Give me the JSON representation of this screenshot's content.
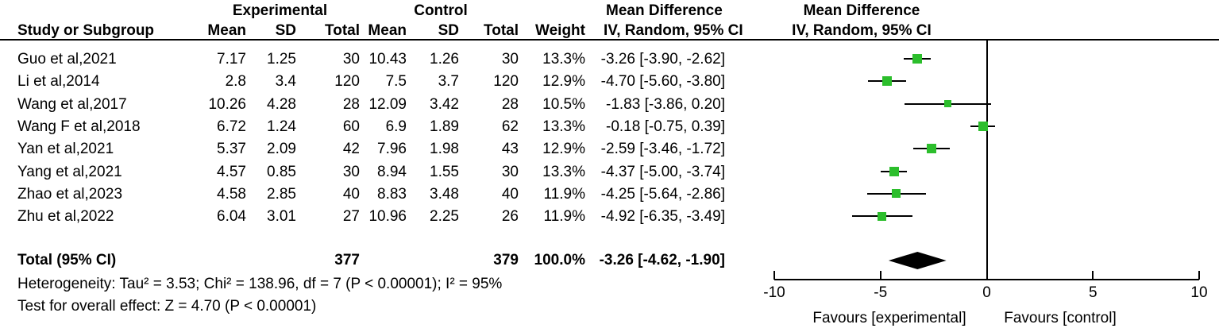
{
  "chart_data": {
    "type": "forest",
    "effect_measure": "Mean Difference",
    "method": "IV, Random, 95% CI",
    "header": {
      "study_col": "Study or Subgroup",
      "experimental_group": "Experimental",
      "control_group": "Control",
      "mean": "Mean",
      "sd": "SD",
      "total": "Total",
      "weight": "Weight",
      "md_title": "Mean Difference",
      "md_subtitle": "IV, Random, 95% CI"
    },
    "studies": [
      {
        "name": "Guo et al,2021",
        "exp_mean": "7.17",
        "exp_sd": "1.25",
        "exp_total": "30",
        "ctrl_mean": "10.43",
        "ctrl_sd": "1.26",
        "ctrl_total": "30",
        "weight": "13.3%",
        "weight_value": 13.3,
        "ci_label": "-3.26 [-3.90, -2.62]",
        "md": -3.26,
        "ci_low": -3.9,
        "ci_high": -2.62
      },
      {
        "name": "Li et al,2014",
        "exp_mean": "2.8",
        "exp_sd": "3.4",
        "exp_total": "120",
        "ctrl_mean": "7.5",
        "ctrl_sd": "3.7",
        "ctrl_total": "120",
        "weight": "12.9%",
        "weight_value": 12.9,
        "ci_label": "-4.70 [-5.60, -3.80]",
        "md": -4.7,
        "ci_low": -5.6,
        "ci_high": -3.8
      },
      {
        "name": "Wang et al,2017",
        "exp_mean": "10.26",
        "exp_sd": "4.28",
        "exp_total": "28",
        "ctrl_mean": "12.09",
        "ctrl_sd": "3.42",
        "ctrl_total": "28",
        "weight": "10.5%",
        "weight_value": 10.5,
        "ci_label": "-1.83 [-3.86, 0.20]",
        "md": -1.83,
        "ci_low": -3.86,
        "ci_high": 0.2
      },
      {
        "name": "Wang F et al,2018",
        "exp_mean": "6.72",
        "exp_sd": "1.24",
        "exp_total": "60",
        "ctrl_mean": "6.9",
        "ctrl_sd": "1.89",
        "ctrl_total": "62",
        "weight": "13.3%",
        "weight_value": 13.3,
        "ci_label": "-0.18 [-0.75, 0.39]",
        "md": -0.18,
        "ci_low": -0.75,
        "ci_high": 0.39
      },
      {
        "name": "Yan et al,2021",
        "exp_mean": "5.37",
        "exp_sd": "2.09",
        "exp_total": "42",
        "ctrl_mean": "7.96",
        "ctrl_sd": "1.98",
        "ctrl_total": "43",
        "weight": "12.9%",
        "weight_value": 12.9,
        "ci_label": "-2.59 [-3.46, -1.72]",
        "md": -2.59,
        "ci_low": -3.46,
        "ci_high": -1.72
      },
      {
        "name": "Yang et al,2021",
        "exp_mean": "4.57",
        "exp_sd": "0.85",
        "exp_total": "30",
        "ctrl_mean": "8.94",
        "ctrl_sd": "1.55",
        "ctrl_total": "30",
        "weight": "13.3%",
        "weight_value": 13.3,
        "ci_label": "-4.37 [-5.00, -3.74]",
        "md": -4.37,
        "ci_low": -5.0,
        "ci_high": -3.74
      },
      {
        "name": "Zhao et al,2023",
        "exp_mean": "4.58",
        "exp_sd": "2.85",
        "exp_total": "40",
        "ctrl_mean": "8.83",
        "ctrl_sd": "3.48",
        "ctrl_total": "40",
        "weight": "11.9%",
        "weight_value": 11.9,
        "ci_label": "-4.25 [-5.64, -2.86]",
        "md": -4.25,
        "ci_low": -5.64,
        "ci_high": -2.86
      },
      {
        "name": "Zhu et al,2022",
        "exp_mean": "6.04",
        "exp_sd": "3.01",
        "exp_total": "27",
        "ctrl_mean": "10.96",
        "ctrl_sd": "2.25",
        "ctrl_total": "26",
        "weight": "11.9%",
        "weight_value": 11.9,
        "ci_label": "-4.92 [-6.35, -3.49]",
        "md": -4.92,
        "ci_low": -6.35,
        "ci_high": -3.49
      }
    ],
    "total": {
      "label": "Total (95% CI)",
      "exp_total": "377",
      "ctrl_total": "379",
      "weight": "100.0%",
      "ci_label": "-3.26 [-4.62, -1.90]",
      "md": -3.26,
      "ci_low": -4.62,
      "ci_high": -1.9
    },
    "heterogeneity_text": "Heterogeneity: Tau² = 3.53; Chi² = 138.96, df = 7 (P < 0.00001); I² = 95%",
    "overall_effect_text": "Test for overall effect: Z = 4.70 (P < 0.00001)",
    "axis": {
      "min": -10,
      "max": 10,
      "ticks": [
        -10,
        -5,
        0,
        5,
        10
      ],
      "tick_labels": [
        "-10",
        "-5",
        "0",
        "5",
        "10"
      ],
      "favours_left": "Favours [experimental]",
      "favours_right": "Favours [control]"
    },
    "colors": {
      "marker": "#2CBE2C",
      "line": "#000000",
      "diamond": "#000000",
      "text": "#000000"
    }
  }
}
